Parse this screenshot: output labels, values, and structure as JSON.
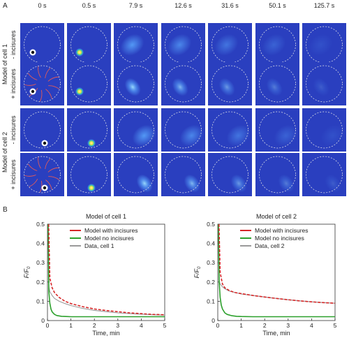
{
  "panel_labels": {
    "a": "A",
    "b": "B"
  },
  "panel_a": {
    "time_labels": [
      "0 s",
      "0.5 s",
      "7.9 s",
      "12.6 s",
      "31.6 s",
      "50.1 s",
      "125.7 s"
    ],
    "groups": [
      {
        "label": "Model of cell 1",
        "rows": [
          "- incisures",
          "+ incisures"
        ]
      },
      {
        "label": "Model of cell 2",
        "rows": [
          "- incisures",
          "+ incisures"
        ]
      }
    ],
    "colors": {
      "background": "#2a3fbf",
      "dashed_circle": "#e8e8e8",
      "incisure": "#e05a5a"
    }
  },
  "chart_data": [
    {
      "type": "line",
      "title": "Model of cell 1",
      "xlabel": "Time, min",
      "ylabel_main": "F",
      "ylabel_sub": "0",
      "xlim": [
        0,
        5
      ],
      "ylim": [
        0,
        0.5
      ],
      "xticks": [
        "0",
        "1",
        "2",
        "3",
        "4",
        "5"
      ],
      "yticks": [
        "0",
        "0.1",
        "0.2",
        "0.3",
        "0.4",
        "0.5"
      ],
      "legend": "top-right",
      "series": [
        {
          "name": "Model with incisures",
          "color": "#d62728",
          "dashed": true,
          "x": [
            0.05,
            0.1,
            0.2,
            0.3,
            0.5,
            0.75,
            1.0,
            1.5,
            2.0,
            2.5,
            3.0,
            3.5,
            4.0,
            4.5,
            5.0
          ],
          "y": [
            0.5,
            0.22,
            0.17,
            0.145,
            0.12,
            0.1,
            0.088,
            0.072,
            0.06,
            0.052,
            0.046,
            0.04,
            0.036,
            0.032,
            0.03
          ]
        },
        {
          "name": "Model no incisures",
          "color": "#2ca02c",
          "dashed": false,
          "x": [
            0.03,
            0.06,
            0.1,
            0.15,
            0.2,
            0.3,
            0.4,
            0.6,
            0.8,
            1.0,
            1.5,
            2.0,
            3.0,
            4.0,
            5.0
          ],
          "y": [
            0.5,
            0.15,
            0.09,
            0.06,
            0.045,
            0.032,
            0.026,
            0.022,
            0.021,
            0.02,
            0.02,
            0.02,
            0.02,
            0.02,
            0.02
          ]
        },
        {
          "name": "Data, cell 1",
          "color": "#9a9a9a",
          "dashed": false,
          "x": [
            0.05,
            0.1,
            0.2,
            0.3,
            0.5,
            0.75,
            1.0,
            1.5,
            2.0,
            2.5,
            3.0,
            3.5,
            4.0,
            4.5,
            5.0
          ],
          "y": [
            0.18,
            0.15,
            0.13,
            0.115,
            0.1,
            0.088,
            0.078,
            0.063,
            0.053,
            0.046,
            0.04,
            0.036,
            0.033,
            0.03,
            0.028
          ]
        }
      ]
    },
    {
      "type": "line",
      "title": "Model of cell 2",
      "xlabel": "Time, min",
      "ylabel_main": "F",
      "ylabel_sub": "0",
      "xlim": [
        0,
        5
      ],
      "ylim": [
        0,
        0.5
      ],
      "xticks": [
        "0",
        "1",
        "2",
        "3",
        "4",
        "5"
      ],
      "yticks": [
        "0",
        "0.1",
        "0.2",
        "0.3",
        "0.4",
        "0.5"
      ],
      "legend": "top-right",
      "series": [
        {
          "name": "Model with incisures",
          "color": "#d62728",
          "dashed": true,
          "x": [
            0.05,
            0.1,
            0.2,
            0.3,
            0.5,
            0.75,
            1.0,
            1.5,
            2.0,
            2.5,
            3.0,
            3.5,
            4.0,
            4.5,
            5.0
          ],
          "y": [
            0.5,
            0.25,
            0.19,
            0.17,
            0.155,
            0.145,
            0.14,
            0.13,
            0.122,
            0.115,
            0.108,
            0.102,
            0.097,
            0.093,
            0.09
          ]
        },
        {
          "name": "Model no incisures",
          "color": "#2ca02c",
          "dashed": false,
          "x": [
            0.03,
            0.06,
            0.1,
            0.15,
            0.2,
            0.3,
            0.4,
            0.6,
            0.8,
            1.0,
            1.5,
            2.0,
            3.0,
            4.0,
            5.0
          ],
          "y": [
            0.5,
            0.2,
            0.12,
            0.08,
            0.06,
            0.04,
            0.032,
            0.025,
            0.022,
            0.021,
            0.02,
            0.02,
            0.02,
            0.02,
            0.02
          ]
        },
        {
          "name": "Data, cell 2",
          "color": "#9a9a9a",
          "dashed": false,
          "x": [
            0.05,
            0.1,
            0.2,
            0.3,
            0.5,
            0.75,
            1.0,
            1.5,
            2.0,
            2.5,
            3.0,
            3.5,
            4.0,
            4.5,
            5.0
          ],
          "y": [
            0.21,
            0.19,
            0.175,
            0.165,
            0.152,
            0.145,
            0.138,
            0.13,
            0.122,
            0.115,
            0.108,
            0.102,
            0.097,
            0.093,
            0.09
          ]
        }
      ]
    }
  ]
}
